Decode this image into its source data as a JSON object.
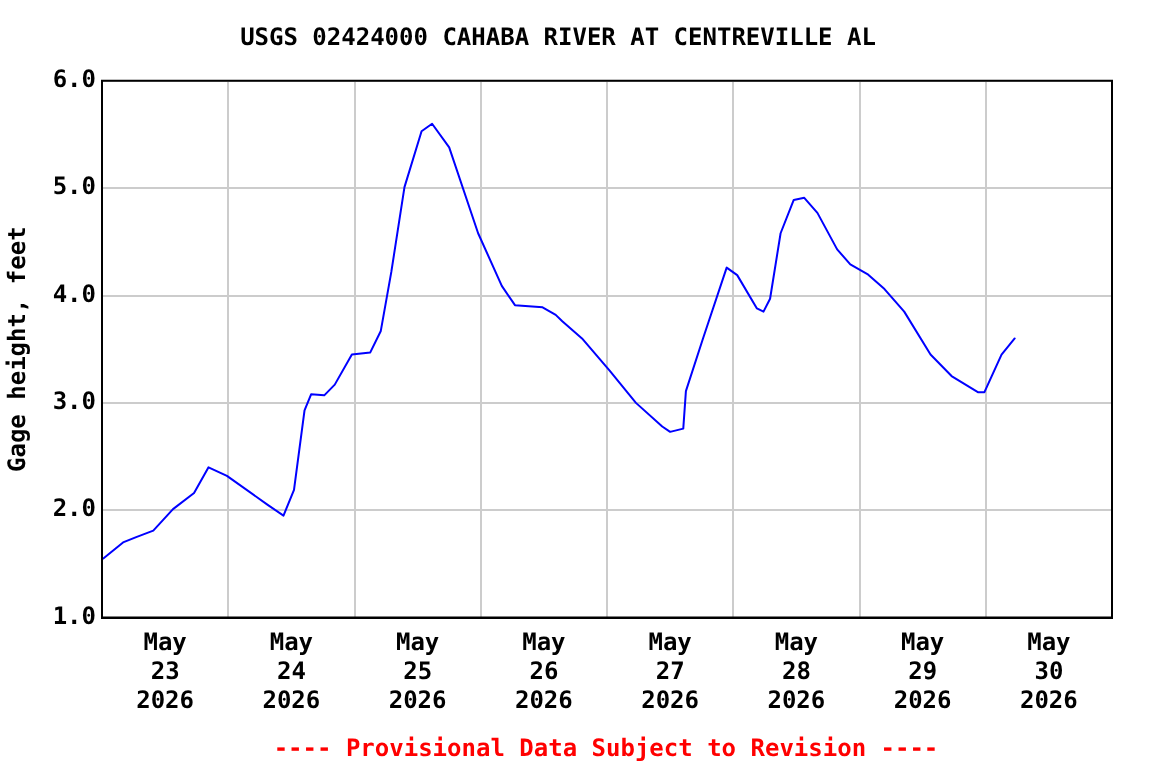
{
  "chart_data": {
    "type": "line",
    "title": "USGS 02424000 CAHABA RIVER AT CENTREVILLE AL",
    "ylabel": "Gage height, feet",
    "annotations": [
      "---- Provisional Data Subject to Revision ----"
    ],
    "x": [
      "2026-05-23T00:15",
      "2026-05-23T04:00",
      "2026-05-23T06:30",
      "2026-05-23T09:45",
      "2026-05-23T13:30",
      "2026-05-23T17:30",
      "2026-05-23T20:15",
      "2026-05-23T23:45",
      "2026-05-24T07:30",
      "2026-05-24T10:30",
      "2026-05-24T12:30",
      "2026-05-24T14:30",
      "2026-05-24T15:45",
      "2026-05-24T18:15",
      "2026-05-24T20:15",
      "2026-05-24T23:30",
      "2026-05-25T03:00",
      "2026-05-25T05:00",
      "2026-05-25T07:00",
      "2026-05-25T09:30",
      "2026-05-25T12:45",
      "2026-05-25T14:45",
      "2026-05-25T18:00",
      "2026-05-25T23:30",
      "2026-05-26T04:00",
      "2026-05-26T06:30",
      "2026-05-26T11:45",
      "2026-05-26T14:15",
      "2026-05-26T15:30",
      "2026-05-26T19:15",
      "2026-05-27T00:30",
      "2026-05-27T05:30",
      "2026-05-27T10:30",
      "2026-05-27T12:00",
      "2026-05-27T14:30",
      "2026-05-27T15:00",
      "2026-05-27T18:15",
      "2026-05-27T22:45",
      "2026-05-28T00:45",
      "2026-05-28T04:30",
      "2026-05-28T05:45",
      "2026-05-28T07:00",
      "2026-05-28T09:00",
      "2026-05-28T11:30",
      "2026-05-28T13:30",
      "2026-05-28T16:00",
      "2026-05-28T19:45",
      "2026-05-28T22:15",
      "2026-05-29T01:30",
      "2026-05-29T04:45",
      "2026-05-29T08:30",
      "2026-05-29T13:30",
      "2026-05-29T17:30",
      "2026-05-29T22:30",
      "2026-05-29T23:45",
      "2026-05-30T03:00",
      "2026-05-30T05:30"
    ],
    "series": [
      {
        "color": "#0000ff",
        "values": [
          1.55,
          1.7,
          1.75,
          1.81,
          2.01,
          2.16,
          2.4,
          2.32,
          2.05,
          1.95,
          2.19,
          2.93,
          3.08,
          3.07,
          3.17,
          3.45,
          3.47,
          3.67,
          4.22,
          5.01,
          5.53,
          5.6,
          5.38,
          4.58,
          4.09,
          3.91,
          3.89,
          3.82,
          3.76,
          3.6,
          3.3,
          3.0,
          2.78,
          2.73,
          2.76,
          3.11,
          3.6,
          4.26,
          4.19,
          3.88,
          3.85,
          3.97,
          4.58,
          4.89,
          4.91,
          4.77,
          4.43,
          4.29,
          4.2,
          4.06,
          3.85,
          3.45,
          3.25,
          3.1,
          3.1,
          3.45,
          3.6
        ]
      }
    ],
    "xlim": [
      "2026-05-23T00:00",
      "2026-05-31T00:00"
    ],
    "xticks": [
      {
        "value": "2026-05-23T12:00",
        "label": "May 23 2026"
      },
      {
        "value": "2026-05-24T00:00",
        "label": null
      },
      {
        "value": "2026-05-24T12:00",
        "label": "May 24 2026"
      },
      {
        "value": "2026-05-25T00:00",
        "label": null
      },
      {
        "value": "2026-05-25T12:00",
        "label": "May 25 2026"
      },
      {
        "value": "2026-05-26T00:00",
        "label": null
      },
      {
        "value": "2026-05-26T12:00",
        "label": "May 26 2026"
      },
      {
        "value": "2026-05-27T00:00",
        "label": null
      },
      {
        "value": "2026-05-27T12:00",
        "label": "May 27 2026"
      },
      {
        "value": "2026-05-28T00:00",
        "label": null
      },
      {
        "value": "2026-05-28T12:00",
        "label": "May 28 2026"
      },
      {
        "value": "2026-05-29T00:00",
        "label": null
      },
      {
        "value": "2026-05-29T12:00",
        "label": "May 29 2026"
      },
      {
        "value": "2026-05-30T00:00",
        "label": null
      },
      {
        "value": "2026-05-30T12:00",
        "label": "May 30 2026"
      }
    ],
    "ylim": [
      1,
      6
    ],
    "yticks": [
      {
        "value": 1,
        "label": "1.0"
      },
      {
        "value": 2,
        "label": "2.0"
      },
      {
        "value": 3,
        "label": "3.0"
      },
      {
        "value": 4,
        "label": "4.0"
      },
      {
        "value": 5,
        "label": "5.0"
      },
      {
        "value": 6,
        "label": "6.0"
      }
    ],
    "grid": true,
    "legend": false,
    "marker": "none",
    "line_style": "solid"
  }
}
